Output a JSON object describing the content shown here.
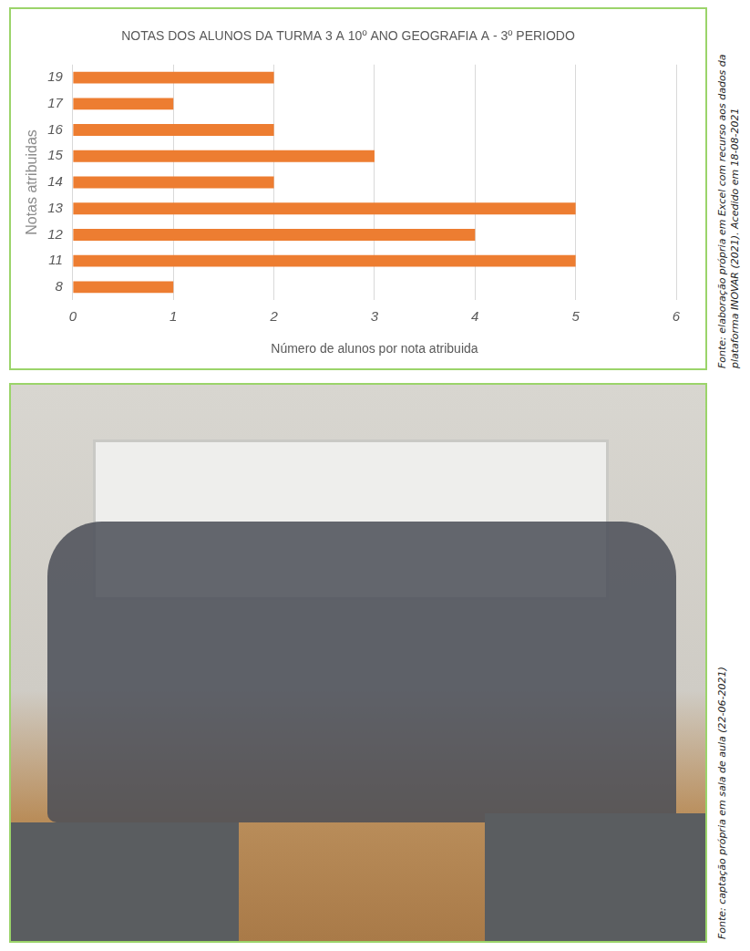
{
  "chart_data": {
    "type": "bar",
    "title": "NOTAS DOS ALUNOS DA TURMA 3 A 10º ANO GEOGRAFIA A - 3º PERIODO",
    "x_label": "Número de alunos por nota atribuida",
    "y_label": "Notas atribuidas",
    "categories": [
      "19",
      "17",
      "16",
      "15",
      "14",
      "13",
      "12",
      "11",
      "8"
    ],
    "values": [
      2,
      1,
      2,
      3,
      2,
      5,
      4,
      5,
      1
    ],
    "color": "#ed7d31",
    "orientation": "horizontal",
    "xlim": [
      0,
      6
    ],
    "xticks": [
      0,
      1,
      2,
      3,
      4,
      5,
      6
    ],
    "grid": true,
    "annotations": [
      "Fonte: elaboração própria em Excel com recurso aos dados da plataforma INOVAR (2021). Acedido em 18-08-2021"
    ]
  },
  "photo": {
    "source": "Fonte: captação própria em sala de aula (22-06-2021)"
  }
}
